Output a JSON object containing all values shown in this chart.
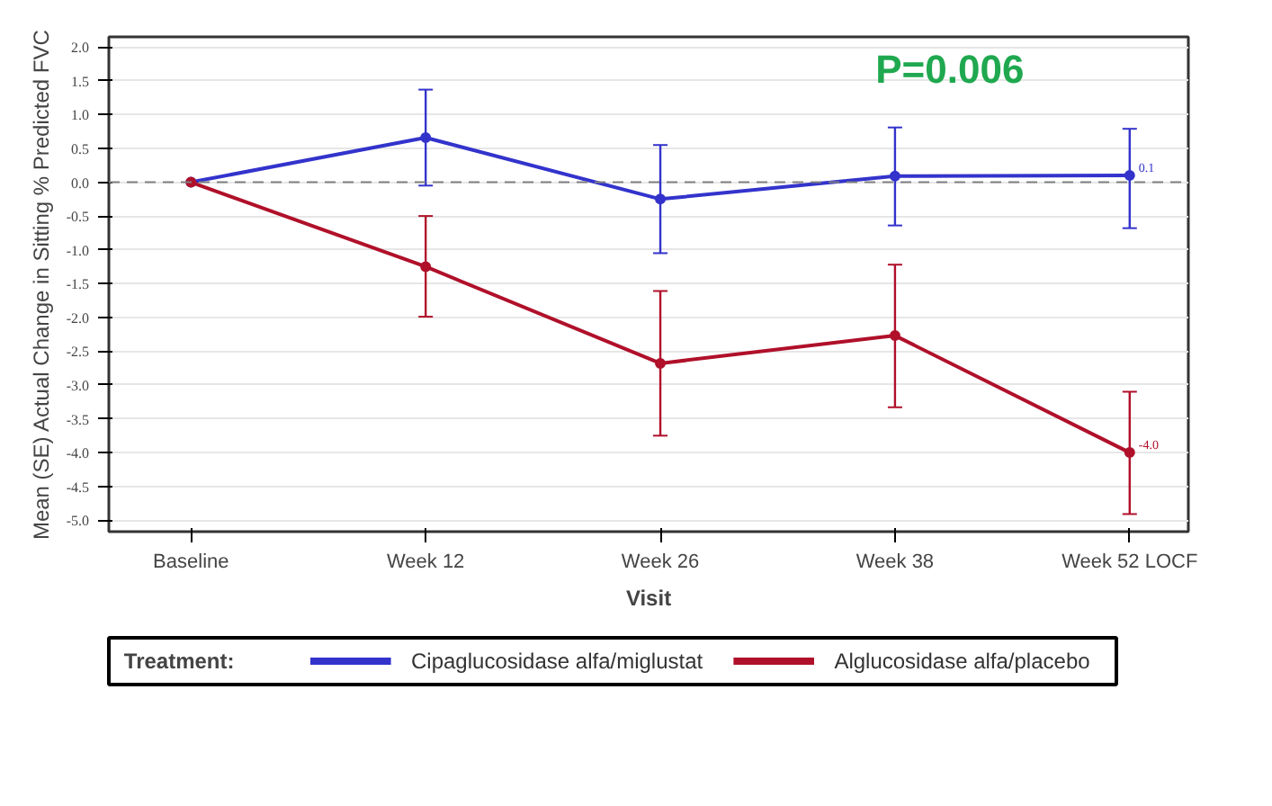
{
  "chart_data": {
    "type": "line",
    "xlabel": "Visit",
    "ylabel": "Mean (SE) Actual Change in Sitting % Predicted FVC",
    "legend_title": "Treatment:",
    "categories": [
      "Baseline",
      "Week 12",
      "Week 26",
      "Week 38",
      "Week 52 LOCF"
    ],
    "ylim": [
      -5.17,
      2.15
    ],
    "yticks": [
      {
        "value": 2,
        "label": "2.0"
      },
      {
        "value": 1.5,
        "label": "1.5"
      },
      {
        "value": 1,
        "label": "1.0"
      },
      {
        "value": 0.5,
        "label": "0.5"
      },
      {
        "value": 0,
        "label": "0.0"
      },
      {
        "value": -0.5,
        "label": "-0.5"
      },
      {
        "value": -1,
        "label": "-1.0"
      },
      {
        "value": -1.5,
        "label": "-1.5"
      },
      {
        "value": -2,
        "label": "-2.0"
      },
      {
        "value": -2.5,
        "label": "-2.5"
      },
      {
        "value": -3,
        "label": "-3.0"
      },
      {
        "value": -3.5,
        "label": "-3.5"
      },
      {
        "value": -4,
        "label": "-4.0"
      },
      {
        "value": -4.5,
        "label": "-4.5"
      },
      {
        "value": -5,
        "label": "-5.0"
      }
    ],
    "series": [
      {
        "name": "Cipaglucosidase alfa/miglustat",
        "color": "#3333cc",
        "values": [
          0,
          0.66,
          -0.25,
          0.09,
          0.1
        ],
        "errors": [
          null,
          [
            -0.05,
            1.37
          ],
          [
            -1.05,
            0.55
          ],
          [
            -0.64,
            0.81
          ],
          [
            -0.68,
            0.79
          ]
        ],
        "value_labels": [
          null,
          null,
          null,
          null,
          "0.1"
        ]
      },
      {
        "name": "Alglucosidase alfa/placebo",
        "color": "#b0102a",
        "values": [
          0,
          -1.25,
          -2.68,
          -2.27,
          -4.0
        ],
        "errors": [
          null,
          [
            -1.99,
            -0.5
          ],
          [
            -3.75,
            -1.61
          ],
          [
            -3.33,
            -1.22
          ],
          [
            -4.91,
            -3.1
          ]
        ],
        "value_labels": [
          null,
          null,
          null,
          null,
          "-4.0"
        ]
      }
    ],
    "ref_lines": [
      {
        "axis": "y",
        "value": 0,
        "color": "#808080",
        "line_style": "dashed"
      }
    ],
    "annotations": [
      "P=0.006"
    ],
    "grid": "y",
    "legend": "bottom",
    "marker": "circle",
    "line_style": "solid"
  }
}
